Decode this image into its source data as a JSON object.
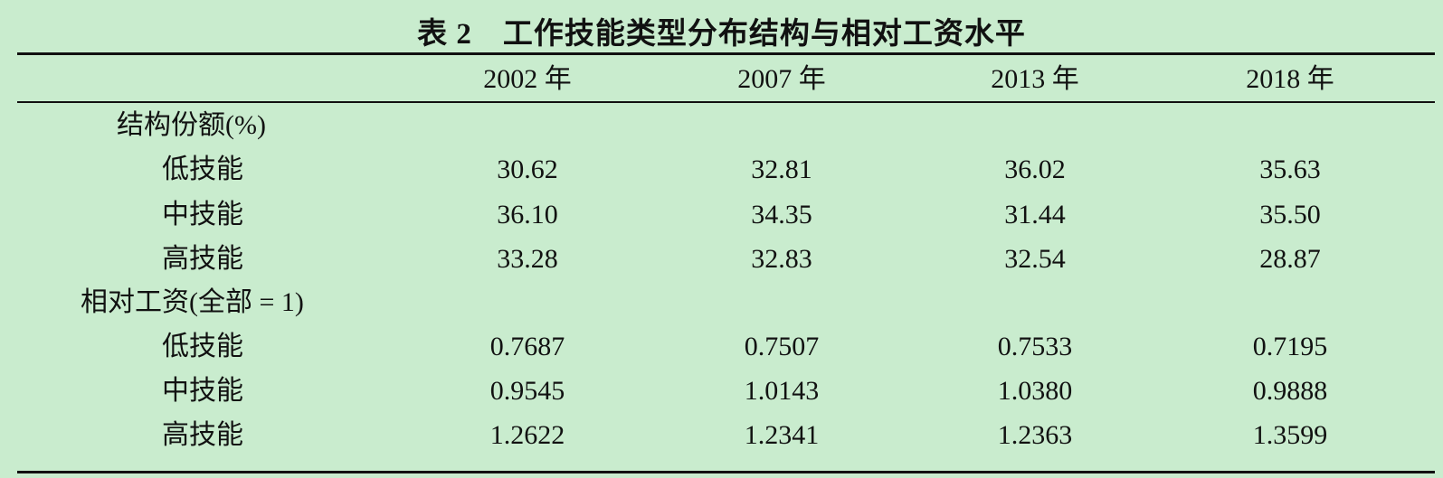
{
  "title": "表 2　工作技能类型分布结构与相对工资水平",
  "columns": [
    "2002 年",
    "2007 年",
    "2013 年",
    "2018 年"
  ],
  "sections": [
    {
      "label": "结构份额(%)",
      "rows": [
        {
          "label": "低技能",
          "values": [
            "30.62",
            "32.81",
            "36.02",
            "35.63"
          ]
        },
        {
          "label": "中技能",
          "values": [
            "36.10",
            "34.35",
            "31.44",
            "35.50"
          ]
        },
        {
          "label": "高技能",
          "values": [
            "33.28",
            "32.83",
            "32.54",
            "28.87"
          ]
        }
      ]
    },
    {
      "label": "相对工资(全部 = 1)",
      "rows": [
        {
          "label": "低技能",
          "values": [
            "0.7687",
            "0.7507",
            "0.7533",
            "0.7195"
          ]
        },
        {
          "label": "中技能",
          "values": [
            "0.9545",
            "1.0143",
            "1.0380",
            "0.9888"
          ]
        },
        {
          "label": "高技能",
          "values": [
            "1.2622",
            "1.2341",
            "1.2363",
            "1.3599"
          ]
        }
      ]
    }
  ]
}
